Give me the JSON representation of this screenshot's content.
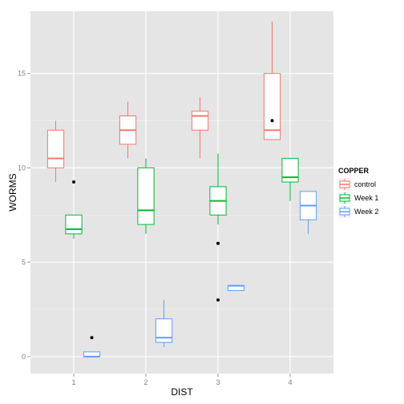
{
  "chart_data": {
    "type": "boxplot",
    "xlabel": "DIST",
    "ylabel": "WORMS",
    "categories": [
      "1",
      "2",
      "3",
      "4"
    ],
    "y_ticks": [
      0,
      5,
      10,
      15
    ],
    "y_tick_labels": [
      "0",
      "5",
      "10",
      "15"
    ],
    "ylim": [
      -0.9,
      18.3
    ],
    "grid": true,
    "legend": {
      "title": "COPPER",
      "position": "right",
      "entries": [
        "control",
        "Week 1",
        "Week 2"
      ]
    },
    "series": [
      {
        "name": "control",
        "color": "#F8766D",
        "boxes": [
          {
            "category": "1",
            "lower_whisker": 9.25,
            "q1": 10.0,
            "median": 10.5,
            "q3": 12.0,
            "upper_whisker": 12.5,
            "outliers": []
          },
          {
            "category": "2",
            "lower_whisker": 10.5,
            "q1": 11.25,
            "median": 12.0,
            "q3": 12.75,
            "upper_whisker": 13.5,
            "outliers": []
          },
          {
            "category": "3",
            "lower_whisker": 10.5,
            "q1": 12.0,
            "median": 12.75,
            "q3": 13.0,
            "upper_whisker": 13.75,
            "outliers": []
          },
          {
            "category": "4",
            "lower_whisker": 11.5,
            "q1": 11.5,
            "median": 12.0,
            "q3": 15.0,
            "upper_whisker": 17.75,
            "outliers": [
              12.5
            ]
          }
        ]
      },
      {
        "name": "Week 1",
        "color": "#00BA38",
        "boxes": [
          {
            "category": "1",
            "lower_whisker": 6.25,
            "q1": 6.5,
            "median": 6.75,
            "q3": 7.5,
            "upper_whisker": 7.5,
            "outliers": [
              9.25
            ]
          },
          {
            "category": "2",
            "lower_whisker": 6.5,
            "q1": 7.0,
            "median": 7.75,
            "q3": 10.0,
            "upper_whisker": 10.5,
            "outliers": []
          },
          {
            "category": "3",
            "lower_whisker": 7.0,
            "q1": 7.5,
            "median": 8.25,
            "q3": 9.0,
            "upper_whisker": 10.75,
            "outliers": [
              6.0,
              3.0
            ]
          },
          {
            "category": "4",
            "lower_whisker": 8.25,
            "q1": 9.25,
            "median": 9.5,
            "q3": 10.5,
            "upper_whisker": 10.5,
            "outliers": []
          }
        ]
      },
      {
        "name": "Week 2",
        "color": "#619CFF",
        "boxes": [
          {
            "category": "1",
            "lower_whisker": 0.0,
            "q1": 0.0,
            "median": 0.0,
            "q3": 0.25,
            "upper_whisker": 0.25,
            "outliers": [
              1.0
            ]
          },
          {
            "category": "2",
            "lower_whisker": 0.5,
            "q1": 0.75,
            "median": 1.0,
            "q3": 2.0,
            "upper_whisker": 3.0,
            "outliers": []
          },
          {
            "category": "3",
            "lower_whisker": 3.5,
            "q1": 3.5,
            "median": 3.75,
            "q3": 3.75,
            "upper_whisker": 3.75,
            "outliers": []
          },
          {
            "category": "4",
            "lower_whisker": 6.5,
            "q1": 7.25,
            "median": 8.0,
            "q3": 8.75,
            "upper_whisker": 8.75,
            "outliers": []
          }
        ]
      }
    ]
  },
  "colors": {
    "panel_background": "#E5E5E5",
    "grid_major": "#FFFFFF",
    "grid_minor": "#F2F2F2",
    "outlier": "#000000"
  }
}
